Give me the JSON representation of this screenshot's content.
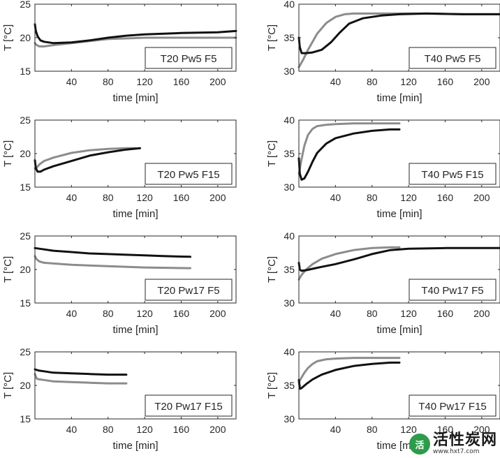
{
  "chart_data": [
    {
      "type": "line",
      "label": "T20 Pw5 F5",
      "xlabel": "time [min]",
      "ylabel": "T [°C]",
      "xlim": [
        0,
        220
      ],
      "ylim": [
        15,
        25
      ],
      "xticks": [
        40,
        80,
        120,
        160,
        200
      ],
      "yticks": [
        15,
        20,
        25
      ],
      "series": [
        {
          "color": "#8c8c8c",
          "x": [
            0,
            2,
            5,
            10,
            20,
            40,
            60,
            80,
            100,
            120,
            160,
            200,
            220
          ],
          "y": [
            19.2,
            18.9,
            18.7,
            18.7,
            18.9,
            19.2,
            19.5,
            19.8,
            19.9,
            20.0,
            20.0,
            20.0,
            20.0
          ]
        },
        {
          "color": "#111111",
          "x": [
            0,
            1,
            3,
            6,
            10,
            20,
            40,
            60,
            80,
            100,
            120,
            160,
            200,
            220
          ],
          "y": [
            22.0,
            21.0,
            20.2,
            19.6,
            19.4,
            19.2,
            19.3,
            19.6,
            20.0,
            20.3,
            20.5,
            20.7,
            20.8,
            21.0
          ]
        }
      ]
    },
    {
      "type": "line",
      "label": "T40 Pw5 F5",
      "xlabel": "time [min]",
      "ylabel": "T [°C]",
      "xlim": [
        0,
        220
      ],
      "ylim": [
        30,
        40
      ],
      "xticks": [
        40,
        80,
        120,
        160,
        200
      ],
      "yticks": [
        30,
        35,
        40
      ],
      "series": [
        {
          "color": "#8c8c8c",
          "x": [
            0,
            5,
            10,
            20,
            30,
            40,
            50,
            60,
            80,
            100,
            140,
            180,
            220
          ],
          "y": [
            30.6,
            31.8,
            33.2,
            35.6,
            37.2,
            38.1,
            38.5,
            38.6,
            38.6,
            38.6,
            38.6,
            38.5,
            38.5
          ]
        },
        {
          "color": "#111111",
          "x": [
            0,
            1,
            3,
            8,
            15,
            25,
            35,
            45,
            55,
            70,
            90,
            110,
            140,
            180,
            220
          ],
          "y": [
            35.0,
            33.6,
            32.7,
            32.7,
            32.8,
            33.2,
            34.3,
            35.8,
            37.1,
            37.9,
            38.3,
            38.5,
            38.6,
            38.5,
            38.5
          ]
        }
      ]
    },
    {
      "type": "line",
      "label": "T20 Pw5 F15",
      "xlabel": "time [min]",
      "ylabel": "T [°C]",
      "xlim": [
        0,
        220
      ],
      "ylim": [
        15,
        25
      ],
      "xticks": [
        40,
        80,
        120,
        160,
        200
      ],
      "yticks": [
        15,
        20,
        25
      ],
      "series": [
        {
          "color": "#8c8c8c",
          "x": [
            0,
            2,
            5,
            10,
            20,
            40,
            60,
            80,
            100,
            110
          ],
          "y": [
            17.8,
            17.9,
            18.4,
            18.9,
            19.4,
            20.1,
            20.5,
            20.7,
            20.8,
            20.8
          ]
        },
        {
          "color": "#111111",
          "x": [
            0,
            1,
            3,
            6,
            10,
            20,
            40,
            60,
            80,
            100,
            115
          ],
          "y": [
            19.0,
            17.8,
            17.3,
            17.3,
            17.6,
            18.1,
            18.9,
            19.7,
            20.2,
            20.6,
            20.8
          ]
        }
      ]
    },
    {
      "type": "line",
      "label": "T40 Pw5 F15",
      "xlabel": "time [min]",
      "ylabel": "T [°C]",
      "xlim": [
        0,
        220
      ],
      "ylim": [
        30,
        40
      ],
      "xticks": [
        40,
        80,
        120,
        160,
        200
      ],
      "yticks": [
        30,
        35,
        40
      ],
      "series": [
        {
          "color": "#8c8c8c",
          "x": [
            0,
            3,
            6,
            10,
            15,
            20,
            30,
            40,
            60,
            80,
            100,
            110
          ],
          "y": [
            32.0,
            34.2,
            36.2,
            37.8,
            38.7,
            39.1,
            39.3,
            39.4,
            39.5,
            39.5,
            39.5,
            39.5
          ]
        },
        {
          "color": "#111111",
          "x": [
            0,
            1,
            3,
            6,
            10,
            15,
            20,
            30,
            40,
            60,
            80,
            100,
            110
          ],
          "y": [
            34.3,
            32.0,
            31.1,
            31.3,
            32.3,
            33.8,
            35.1,
            36.5,
            37.3,
            38.0,
            38.4,
            38.6,
            38.6
          ]
        }
      ]
    },
    {
      "type": "line",
      "label": "T20 Pw17 F5",
      "xlabel": "time [min]",
      "ylabel": "T [°C]",
      "xlim": [
        0,
        220
      ],
      "ylim": [
        15,
        25
      ],
      "xticks": [
        40,
        80,
        120,
        160,
        200
      ],
      "yticks": [
        15,
        20,
        25
      ],
      "series": [
        {
          "color": "#8c8c8c",
          "x": [
            0,
            2,
            5,
            10,
            20,
            40,
            80,
            120,
            170
          ],
          "y": [
            22.0,
            21.5,
            21.2,
            21.0,
            20.9,
            20.7,
            20.5,
            20.3,
            20.2
          ]
        },
        {
          "color": "#111111",
          "x": [
            0,
            10,
            20,
            40,
            60,
            80,
            100,
            120,
            140,
            170
          ],
          "y": [
            23.2,
            23.0,
            22.8,
            22.6,
            22.4,
            22.3,
            22.2,
            22.1,
            22.0,
            21.9
          ]
        }
      ]
    },
    {
      "type": "line",
      "label": "T40 Pw17 F5",
      "xlabel": "time [min]",
      "ylabel": "T [°C]",
      "xlim": [
        0,
        220
      ],
      "ylim": [
        30,
        40
      ],
      "xticks": [
        40,
        80,
        120,
        160,
        200
      ],
      "yticks": [
        30,
        35,
        40
      ],
      "series": [
        {
          "color": "#8c8c8c",
          "x": [
            0,
            3,
            8,
            15,
            25,
            40,
            60,
            80,
            100,
            110
          ],
          "y": [
            33.5,
            34.2,
            35.0,
            35.8,
            36.6,
            37.3,
            37.9,
            38.2,
            38.3,
            38.3
          ]
        },
        {
          "color": "#111111",
          "x": [
            0,
            1,
            3,
            8,
            15,
            25,
            40,
            60,
            80,
            100,
            120,
            160,
            200,
            220
          ],
          "y": [
            36.0,
            35.0,
            34.8,
            34.9,
            35.1,
            35.4,
            35.8,
            36.5,
            37.3,
            37.9,
            38.1,
            38.2,
            38.2,
            38.2
          ]
        }
      ]
    },
    {
      "type": "line",
      "label": "T20 Pw17 F15",
      "xlabel": "time [min]",
      "ylabel": "T [°C]",
      "xlim": [
        0,
        220
      ],
      "ylim": [
        15,
        25
      ],
      "xticks": [
        40,
        80,
        120,
        160,
        200
      ],
      "yticks": [
        15,
        20,
        25
      ],
      "series": [
        {
          "color": "#8c8c8c",
          "x": [
            0,
            2,
            5,
            10,
            20,
            40,
            60,
            80,
            100
          ],
          "y": [
            21.7,
            21.0,
            20.9,
            20.8,
            20.6,
            20.5,
            20.4,
            20.3,
            20.3
          ]
        },
        {
          "color": "#111111",
          "x": [
            0,
            2,
            5,
            10,
            20,
            40,
            60,
            80,
            100
          ],
          "y": [
            22.4,
            22.3,
            22.2,
            22.1,
            21.9,
            21.8,
            21.7,
            21.6,
            21.6
          ]
        }
      ]
    },
    {
      "type": "line",
      "label": "T40 Pw17 F15",
      "xlabel": "time [min]",
      "ylabel": "T [°C]",
      "xlim": [
        0,
        220
      ],
      "ylim": [
        30,
        40
      ],
      "xticks": [
        40,
        80,
        120,
        160,
        200
      ],
      "yticks": [
        30,
        35,
        40
      ],
      "series": [
        {
          "color": "#8c8c8c",
          "x": [
            0,
            3,
            6,
            10,
            15,
            20,
            30,
            40,
            60,
            80,
            100,
            110
          ],
          "y": [
            35.5,
            36.2,
            36.9,
            37.6,
            38.2,
            38.6,
            38.9,
            39.0,
            39.1,
            39.1,
            39.1,
            39.1
          ]
        },
        {
          "color": "#111111",
          "x": [
            0,
            1,
            3,
            8,
            15,
            25,
            40,
            60,
            80,
            100,
            110
          ],
          "y": [
            35.8,
            34.5,
            34.6,
            35.2,
            35.9,
            36.6,
            37.3,
            37.9,
            38.2,
            38.4,
            38.4
          ]
        }
      ]
    }
  ],
  "watermark": {
    "logo_text": "活",
    "brand": "活性炭网",
    "url": "www.hxt7.com"
  }
}
